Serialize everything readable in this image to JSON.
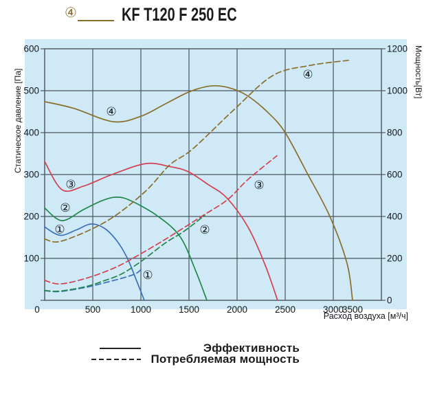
{
  "header": {
    "title": "KF T120 F 250 EC",
    "marker": "④"
  },
  "colors": {
    "panel": "#cfe9f7",
    "grid": "#4a545e",
    "text": "#14181c",
    "curve1_blue": "#3a6fbe",
    "curve2_green": "#1f8747",
    "curve3_red": "#d2404f",
    "curve4_olive": "#8a6d28"
  },
  "chart_data": {
    "type": "line",
    "title": "KF T120 F 250 EC",
    "x_axis": {
      "label": "Расход воздуха [м³/ч]",
      "min": 0,
      "max": 3500,
      "ticks": [
        0,
        500,
        1000,
        1500,
        2000,
        2500,
        3000,
        3500
      ]
    },
    "y_axis_left": {
      "label": "Статическое давление [Па]",
      "min": 0,
      "max": 600,
      "ticks": [
        0,
        100,
        200,
        300,
        400,
        500,
        600
      ]
    },
    "y_axis_right": {
      "label": "Мощность[Вт]",
      "min": 0,
      "max": 1200,
      "ticks": [
        0,
        200,
        400,
        600,
        800,
        1000,
        1200
      ]
    },
    "grid": "on",
    "legend": {
      "solid": "Эффективность",
      "dashed": "Потребляемая мощность",
      "position": "bottom"
    },
    "series": [
      {
        "name": "speed-1-pressure",
        "marker": "①",
        "color": "curve1_blue",
        "style": "solid",
        "axis": "left",
        "marker_at": [
          157,
          170
        ],
        "points": [
          [
            0,
            175
          ],
          [
            160,
            155
          ],
          [
            330,
            168
          ],
          [
            480,
            182
          ],
          [
            620,
            172
          ],
          [
            750,
            142
          ],
          [
            860,
            100
          ],
          [
            960,
            44
          ],
          [
            1036,
            0
          ]
        ]
      },
      {
        "name": "speed-2-pressure",
        "marker": "②",
        "color": "curve2_green",
        "style": "solid",
        "axis": "left",
        "marker_at": [
          214,
          221
        ],
        "points": [
          [
            0,
            220
          ],
          [
            180,
            190
          ],
          [
            400,
            216
          ],
          [
            600,
            238
          ],
          [
            750,
            246
          ],
          [
            900,
            237
          ],
          [
            1180,
            200
          ],
          [
            1410,
            151
          ],
          [
            1570,
            70
          ],
          [
            1686,
            0
          ]
        ]
      },
      {
        "name": "speed-3-pressure",
        "marker": "③",
        "color": "curve3_red",
        "style": "solid",
        "axis": "left",
        "marker_at": [
          271,
          277
        ],
        "points": [
          [
            0,
            331
          ],
          [
            180,
            264
          ],
          [
            400,
            272
          ],
          [
            700,
            300
          ],
          [
            1050,
            326
          ],
          [
            1300,
            319
          ],
          [
            1490,
            307
          ],
          [
            1700,
            276
          ],
          [
            1890,
            245
          ],
          [
            2110,
            176
          ],
          [
            2290,
            85
          ],
          [
            2421,
            0
          ]
        ]
      },
      {
        "name": "speed-4-pressure",
        "marker": "④",
        "color": "curve4_olive",
        "style": "solid",
        "axis": "left",
        "marker_at": [
          693,
          451
        ],
        "points": [
          [
            0,
            474
          ],
          [
            300,
            458
          ],
          [
            714,
            426
          ],
          [
            1000,
            439
          ],
          [
            1250,
            468
          ],
          [
            1500,
            497
          ],
          [
            1714,
            511
          ],
          [
            1900,
            508
          ],
          [
            2100,
            489
          ],
          [
            2321,
            448
          ],
          [
            2500,
            400
          ],
          [
            2729,
            303
          ],
          [
            2964,
            200
          ],
          [
            3143,
            88
          ],
          [
            3200,
            0
          ]
        ]
      },
      {
        "name": "speed-1-power",
        "marker": "①",
        "color": "curve1_blue",
        "style": "dashed",
        "axis": "right",
        "marker_at": [
          1071,
          121
        ],
        "points": [
          [
            0,
            46
          ],
          [
            160,
            42
          ],
          [
            430,
            62
          ],
          [
            610,
            82
          ],
          [
            800,
            105
          ],
          [
            950,
            128
          ],
          [
            1014,
            154
          ]
        ]
      },
      {
        "name": "speed-2-power",
        "marker": "②",
        "color": "curve2_green",
        "style": "dashed",
        "axis": "right",
        "marker_at": [
          1664,
          338
        ],
        "points": [
          [
            0,
            47
          ],
          [
            160,
            44
          ],
          [
            430,
            66
          ],
          [
            610,
            92
          ],
          [
            800,
            126
          ],
          [
            1000,
            185
          ],
          [
            1250,
            272
          ],
          [
            1450,
            330
          ],
          [
            1664,
            406
          ]
        ]
      },
      {
        "name": "speed-3-power",
        "marker": "③",
        "color": "curve3_red",
        "style": "dashed",
        "axis": "right",
        "marker_at": [
          2229,
          551
        ],
        "points": [
          [
            0,
            95
          ],
          [
            160,
            78
          ],
          [
            430,
            105
          ],
          [
            700,
            150
          ],
          [
            900,
            196
          ],
          [
            1250,
            290
          ],
          [
            1630,
            400
          ],
          [
            1900,
            480
          ],
          [
            2110,
            575
          ],
          [
            2414,
            690
          ]
        ]
      },
      {
        "name": "speed-4-power",
        "marker": "④",
        "color": "curve4_olive",
        "style": "dashed",
        "axis": "right",
        "marker_at": [
          2736,
          1078
        ],
        "points": [
          [
            0,
            292
          ],
          [
            180,
            283
          ],
          [
            643,
            377
          ],
          [
            1036,
            515
          ],
          [
            1300,
            646
          ],
          [
            1536,
            721
          ],
          [
            1964,
            908
          ],
          [
            2371,
            1072
          ],
          [
            2750,
            1120
          ],
          [
            3157,
            1145
          ]
        ]
      }
    ]
  }
}
